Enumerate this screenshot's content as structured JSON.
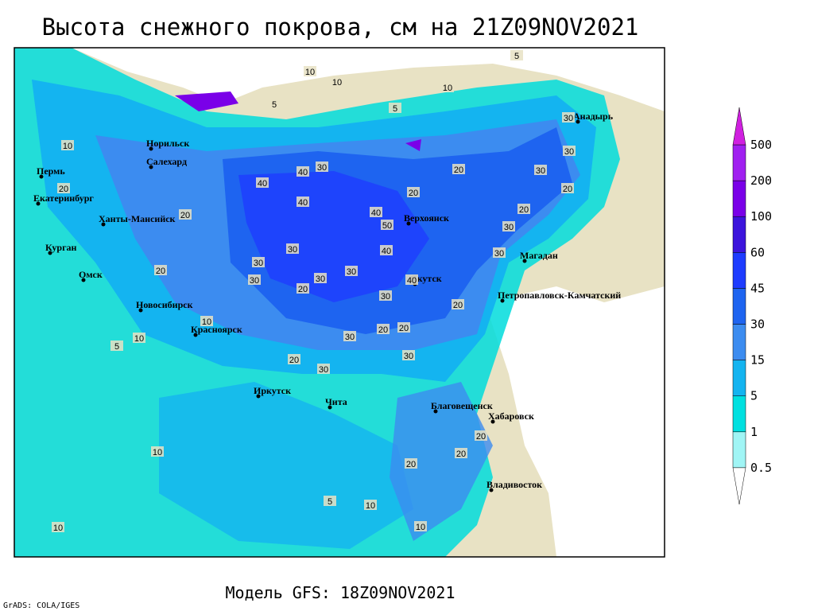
{
  "title": "Высота снежного покрова, см на 21Z09NOV2021",
  "footer": "Модель GFS: 18Z09NOV2021",
  "credit": "GrADS: COLA/IGES",
  "cities": [
    "Норильск",
    "Салехард",
    "Пермь",
    "Екатеринбург",
    "Ханты-Мансийск",
    "Курган",
    "Омск",
    "Новосибирск",
    "Красноярск",
    "Иркутск",
    "Чита",
    "Благовещенск",
    "Хабаровск",
    "Владивосток",
    "Якутск",
    "Верхоянск",
    "Магадан",
    "Петропавловск-Камчатский",
    "Анадырь"
  ],
  "contour_labels": [
    10,
    10,
    5,
    5,
    10,
    5,
    30,
    30,
    30,
    20,
    20,
    20,
    40,
    40,
    40,
    30,
    40,
    50,
    40,
    30,
    30,
    30,
    30,
    30,
    40,
    30,
    20,
    20,
    20,
    20,
    30,
    30,
    30,
    20,
    10,
    10,
    10,
    20,
    20,
    20,
    5,
    20,
    20,
    10,
    10,
    10,
    10,
    5,
    30,
    20,
    30,
    20
  ],
  "legend": {
    "levels": [
      0.5,
      1,
      5,
      15,
      30,
      45,
      60,
      100,
      200,
      500
    ],
    "colors": [
      "#ffffff",
      "#a0f5f5",
      "#00e0e0",
      "#14b4f0",
      "#3c8cf0",
      "#1e64f0",
      "#1e3cff",
      "#3c14dc",
      "#7a00e8",
      "#a020f0",
      "#d020e0"
    ]
  }
}
